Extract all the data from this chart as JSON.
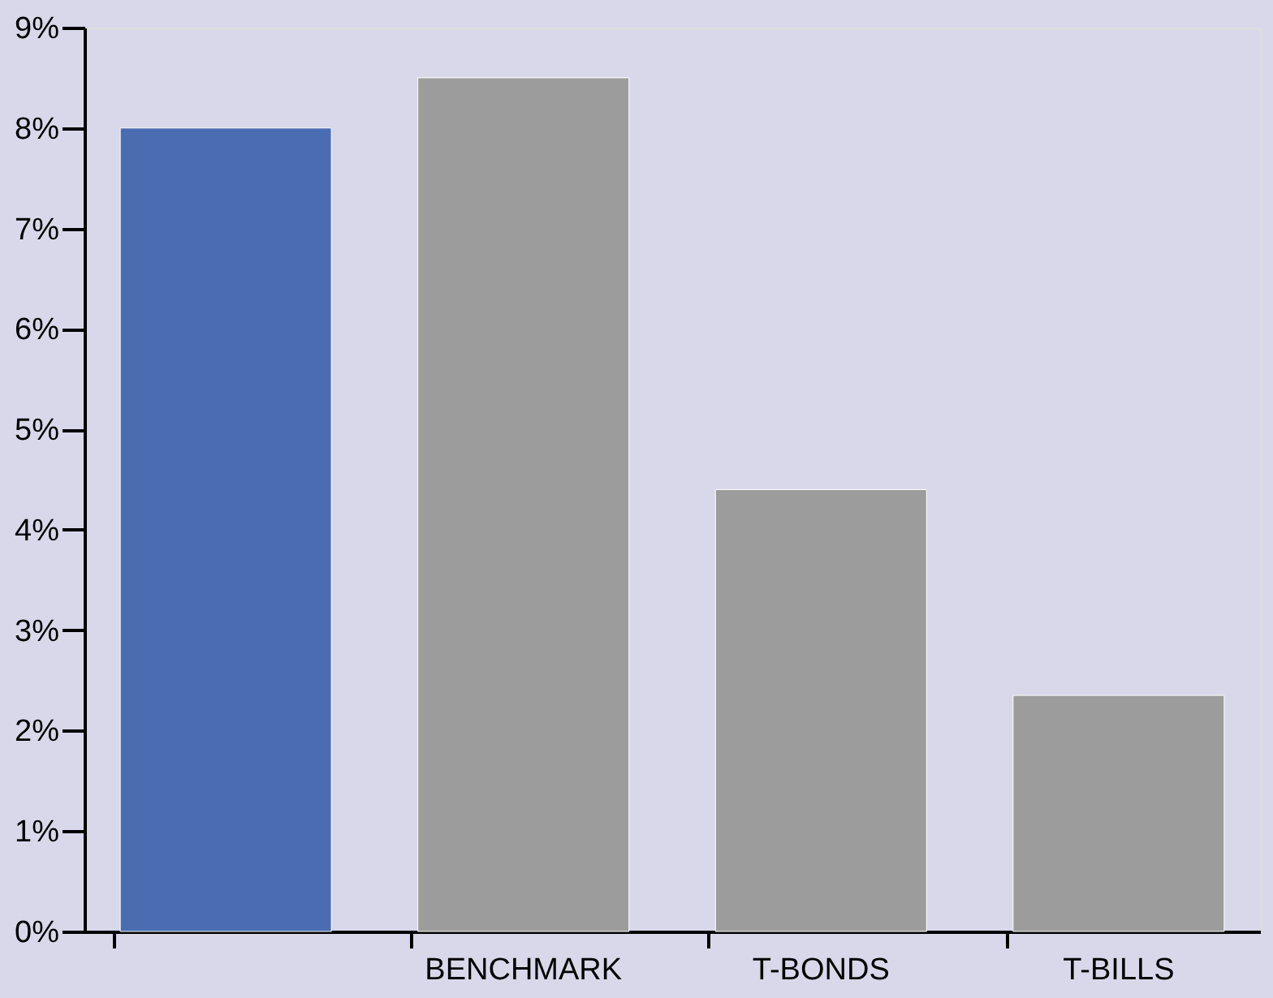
{
  "chart_data": {
    "type": "bar",
    "categories": [
      null,
      "BENCHMARK",
      "T-BONDS",
      "T-BILLS"
    ],
    "values": [
      8.0,
      8.5,
      4.4,
      2.35
    ],
    "colors": [
      "#4a6cb0",
      "#9c9c9c",
      "#9c9c9c",
      "#9c9c9c"
    ],
    "ylim": [
      0,
      9
    ],
    "yticks": [
      {
        "value": 0,
        "label": "0%"
      },
      {
        "value": 1,
        "label": "1%"
      },
      {
        "value": 2,
        "label": "2%"
      },
      {
        "value": 3,
        "label": "3%"
      },
      {
        "value": 4,
        "label": "4%"
      },
      {
        "value": 5,
        "label": "5%"
      },
      {
        "value": 6,
        "label": "6%"
      },
      {
        "value": 7,
        "label": "7%"
      },
      {
        "value": 8,
        "label": "8%"
      },
      {
        "value": 9,
        "label": "9%"
      }
    ],
    "grid": false
  }
}
